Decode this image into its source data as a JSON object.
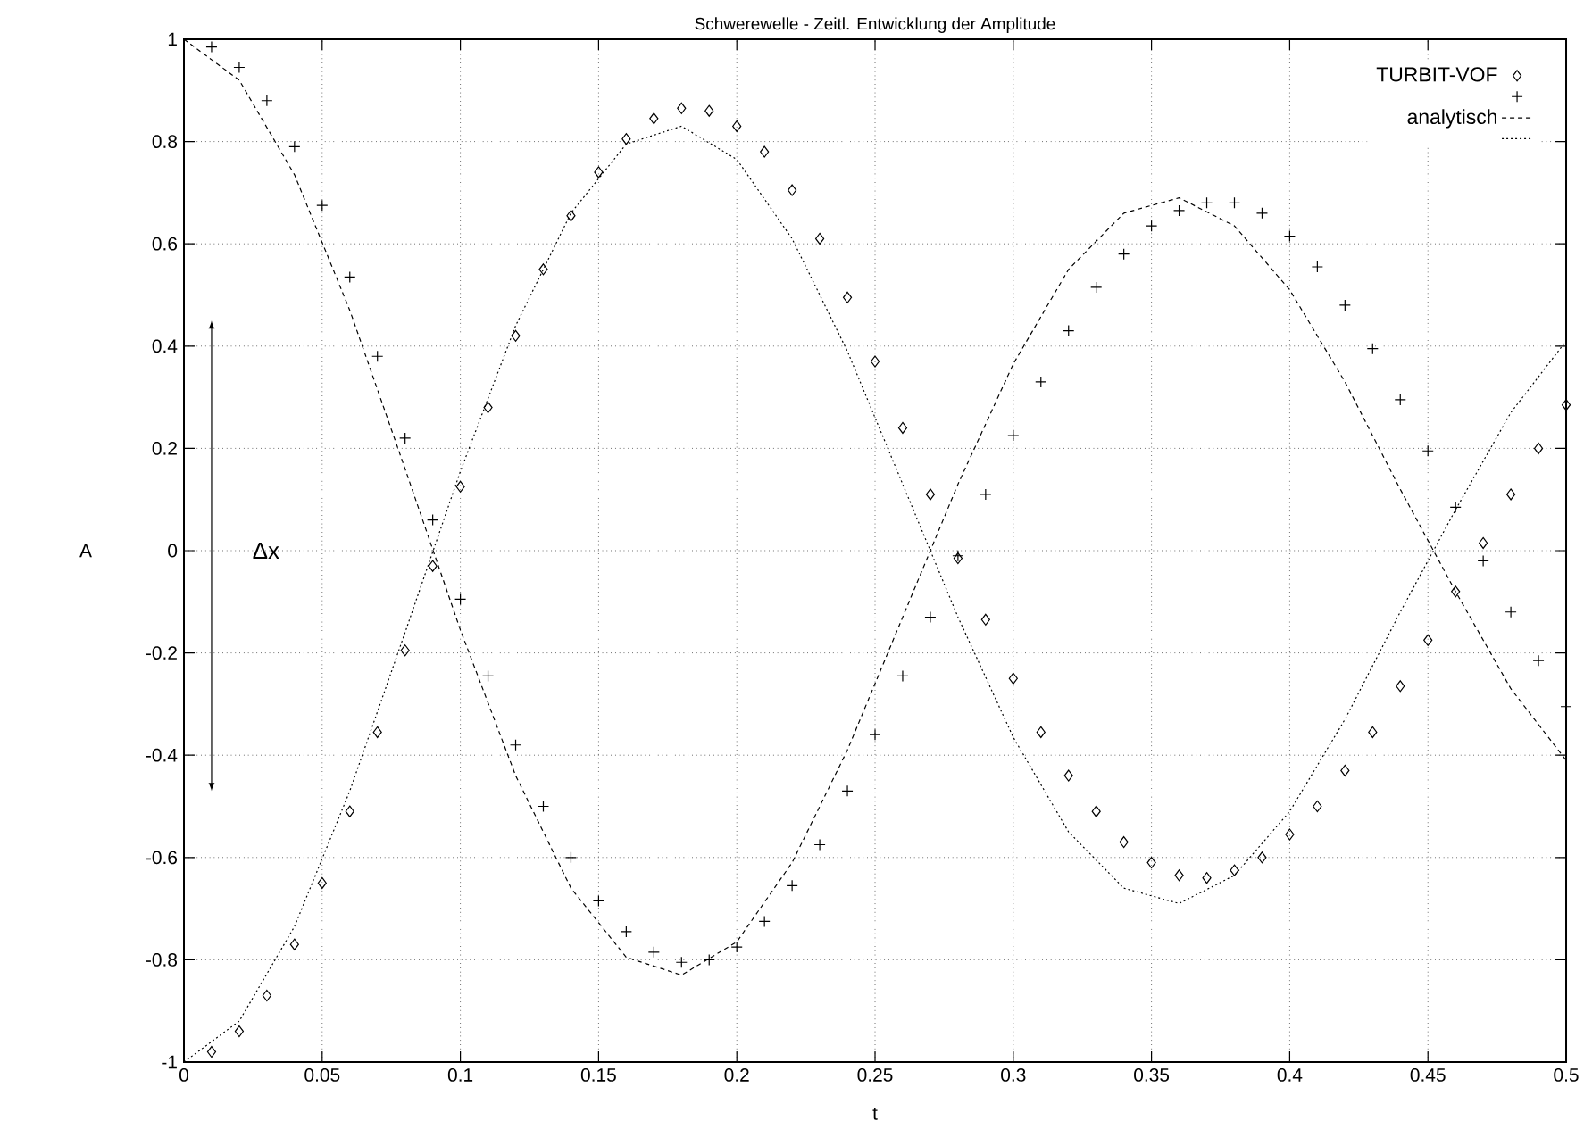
{
  "chart_data": {
    "type": "scatter",
    "title": "Schwerewelle - Zeitl. Entwicklung der Amplitude",
    "xlabel": "t",
    "ylabel": "A",
    "annotations": [
      "Δx"
    ],
    "xlim": [
      0,
      0.5
    ],
    "xticks": [
      0,
      0.05,
      0.1,
      0.15,
      0.2,
      0.25,
      0.3,
      0.35,
      0.4,
      0.45,
      0.5
    ],
    "ylim": [
      -1,
      1
    ],
    "yticks": [
      -1,
      -0.8,
      -0.6,
      -0.4,
      -0.2,
      0,
      0.2,
      0.4,
      0.6,
      0.8,
      1
    ],
    "grid": true,
    "legend": "top right",
    "series": [
      {
        "name": "TURBIT-VOF",
        "type": "scatter",
        "marker": "diamond",
        "color": "#000000",
        "x": [
          0.01,
          0.02,
          0.03,
          0.04,
          0.05,
          0.06,
          0.07,
          0.08,
          0.09,
          0.1,
          0.11,
          0.12,
          0.13,
          0.14,
          0.15,
          0.16,
          0.17,
          0.18,
          0.19,
          0.2,
          0.21,
          0.22,
          0.23,
          0.24,
          0.25,
          0.26,
          0.27,
          0.28,
          0.29,
          0.3,
          0.31,
          0.32,
          0.33,
          0.34,
          0.35,
          0.36,
          0.37,
          0.38,
          0.39,
          0.4,
          0.41,
          0.42,
          0.43,
          0.44,
          0.45,
          0.46,
          0.47,
          0.48,
          0.49,
          0.5
        ],
        "values": [
          -0.98,
          -0.94,
          -0.87,
          -0.77,
          -0.65,
          -0.51,
          -0.355,
          -0.195,
          -0.03,
          0.125,
          0.28,
          0.42,
          0.55,
          0.655,
          0.74,
          0.805,
          0.845,
          0.865,
          0.86,
          0.83,
          0.78,
          0.705,
          0.61,
          0.495,
          0.37,
          0.24,
          0.11,
          -0.015,
          -0.135,
          -0.25,
          -0.355,
          -0.44,
          -0.51,
          -0.57,
          -0.61,
          -0.635,
          -0.64,
          -0.625,
          -0.6,
          -0.555,
          -0.5,
          -0.43,
          -0.355,
          -0.265,
          -0.175,
          -0.08,
          0.015,
          0.11,
          0.2,
          0.285
        ]
      },
      {
        "type": "scatter",
        "marker": "cross",
        "color": "#000000",
        "x": [
          0.01,
          0.02,
          0.03,
          0.04,
          0.05,
          0.06,
          0.07,
          0.08,
          0.09,
          0.1,
          0.11,
          0.12,
          0.13,
          0.14,
          0.15,
          0.16,
          0.17,
          0.18,
          0.19,
          0.2,
          0.21,
          0.22,
          0.23,
          0.24,
          0.25,
          0.26,
          0.27,
          0.28,
          0.29,
          0.3,
          0.31,
          0.32,
          0.33,
          0.34,
          0.35,
          0.36,
          0.37,
          0.38,
          0.39,
          0.4,
          0.41,
          0.42,
          0.43,
          0.44,
          0.45,
          0.46,
          0.47,
          0.48,
          0.49,
          0.5
        ],
        "values": [
          0.985,
          0.945,
          0.88,
          0.79,
          0.675,
          0.535,
          0.38,
          0.22,
          0.06,
          -0.095,
          -0.245,
          -0.38,
          -0.5,
          -0.6,
          -0.685,
          -0.745,
          -0.785,
          -0.805,
          -0.8,
          -0.775,
          -0.725,
          -0.655,
          -0.575,
          -0.47,
          -0.36,
          -0.245,
          -0.13,
          -0.01,
          0.11,
          0.225,
          0.33,
          0.43,
          0.515,
          0.58,
          0.635,
          0.665,
          0.68,
          0.68,
          0.66,
          0.615,
          0.555,
          0.48,
          0.395,
          0.295,
          0.195,
          0.085,
          -0.02,
          -0.12,
          -0.215,
          -0.305
        ]
      },
      {
        "name": "analytisch",
        "type": "line",
        "line_style": "dashed",
        "marker": "none",
        "color": "#000000",
        "x": [
          0,
          0.02,
          0.04,
          0.06,
          0.08,
          0.1,
          0.12,
          0.14,
          0.16,
          0.18,
          0.2,
          0.22,
          0.24,
          0.26,
          0.28,
          0.3,
          0.32,
          0.34,
          0.36,
          0.38,
          0.4,
          0.42,
          0.44,
          0.46,
          0.48,
          0.5
        ],
        "values": [
          1,
          0.92,
          0.735,
          0.47,
          0.16,
          -0.155,
          -0.44,
          -0.66,
          -0.795,
          -0.83,
          -0.765,
          -0.61,
          -0.39,
          -0.13,
          0.13,
          0.365,
          0.55,
          0.66,
          0.69,
          0.635,
          0.51,
          0.33,
          0.12,
          -0.08,
          -0.27,
          -0.41
        ]
      },
      {
        "type": "line",
        "line_style": "dotted",
        "marker": "none",
        "color": "#000000",
        "x": [
          0,
          0.02,
          0.04,
          0.06,
          0.08,
          0.1,
          0.12,
          0.14,
          0.16,
          0.18,
          0.2,
          0.22,
          0.24,
          0.26,
          0.28,
          0.3,
          0.32,
          0.34,
          0.36,
          0.38,
          0.4,
          0.42,
          0.44,
          0.46,
          0.48,
          0.5
        ],
        "values": [
          -1,
          -0.92,
          -0.735,
          -0.47,
          -0.16,
          0.155,
          0.44,
          0.66,
          0.795,
          0.83,
          0.765,
          0.61,
          0.39,
          0.13,
          -0.13,
          -0.365,
          -0.55,
          -0.66,
          -0.69,
          -0.635,
          -0.51,
          -0.33,
          -0.12,
          0.08,
          0.27,
          0.41
        ]
      }
    ]
  }
}
